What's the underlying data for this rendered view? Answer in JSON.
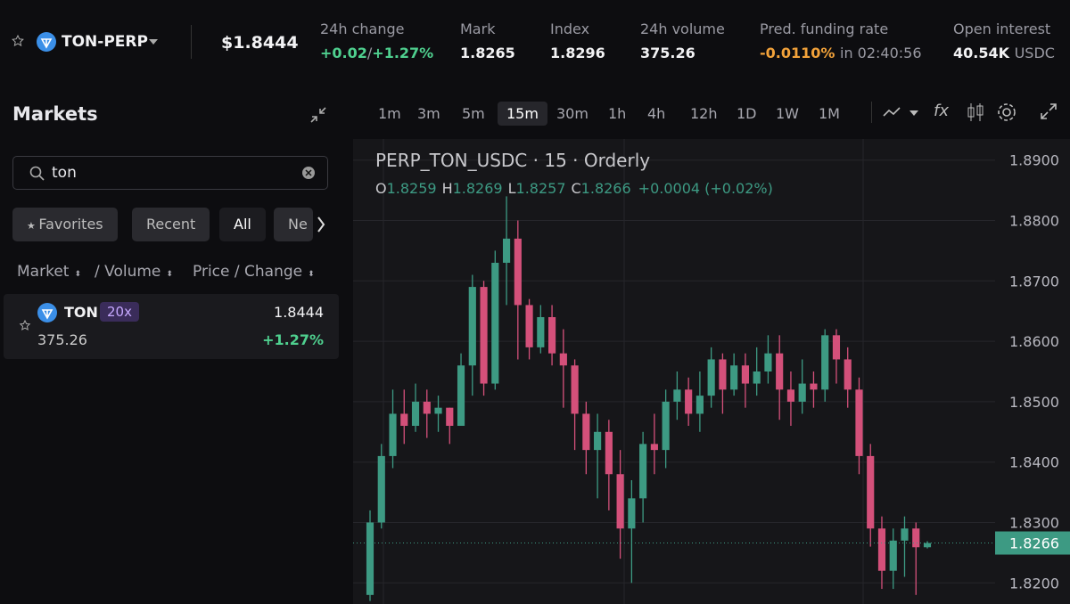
{
  "header": {
    "symbol": "TON-PERP",
    "price": "$1.8444",
    "stats": [
      {
        "label": "24h change",
        "value": "+0.02",
        "sep": "/",
        "extra": "+1.27%"
      },
      {
        "label": "Mark",
        "value": "1.8265"
      },
      {
        "label": "Index",
        "value": "1.8296"
      },
      {
        "label": "24h volume",
        "value": "375.26"
      },
      {
        "label": "Pred. funding rate",
        "value": "-0.0110%",
        "extra": "in 02:40:56"
      },
      {
        "label": "Open interest",
        "value": "40.54K",
        "extra": "USDC"
      }
    ]
  },
  "markets": {
    "title": "Markets",
    "search": "ton",
    "tabs": [
      "Favorites",
      "Recent",
      "All",
      "Ne"
    ],
    "columns": [
      "Market",
      "/ Volume",
      "Price / Change"
    ],
    "rows": [
      {
        "symbol": "TON",
        "leverage": "20x",
        "price": "1.8444",
        "volume": "375.26",
        "change": "+1.27%"
      }
    ]
  },
  "toolbar": {
    "intervals": [
      "1m",
      "3m",
      "5m",
      "15m",
      "30m",
      "1h",
      "4h",
      "12h",
      "1D",
      "1W",
      "1M"
    ],
    "active": "15m",
    "fx": "fx"
  },
  "chart_data": {
    "type": "candlestick",
    "title": "PERP_TON_USDC · 15 · Orderly",
    "legend": {
      "O": "1.8259",
      "H": "1.8269",
      "L": "1.8257",
      "C": "1.8266",
      "change": "+0.0004 (+0.02%)"
    },
    "up_color": "#3d9a83",
    "down_color": "#d4507a",
    "ylim": [
      1.8165,
      1.8935
    ],
    "yticks": [
      {
        "value": 1.82,
        "label": "1.8200"
      },
      {
        "value": 1.83,
        "label": "1.8300"
      },
      {
        "value": 1.84,
        "label": "1.8400"
      },
      {
        "value": 1.85,
        "label": "1.8500"
      },
      {
        "value": 1.86,
        "label": "1.8600"
      },
      {
        "value": 1.87,
        "label": "1.8700"
      },
      {
        "value": 1.88,
        "label": "1.8800"
      },
      {
        "value": 1.89,
        "label": "1.8900"
      }
    ],
    "last": {
      "value": 1.8266,
      "label": "1.8266"
    },
    "candles": [
      {
        "o": 1.818,
        "h": 1.832,
        "l": 1.817,
        "c": 1.83
      },
      {
        "o": 1.83,
        "h": 1.843,
        "l": 1.829,
        "c": 1.841
      },
      {
        "o": 1.841,
        "h": 1.852,
        "l": 1.839,
        "c": 1.848
      },
      {
        "o": 1.848,
        "h": 1.852,
        "l": 1.843,
        "c": 1.846
      },
      {
        "o": 1.846,
        "h": 1.853,
        "l": 1.845,
        "c": 1.85
      },
      {
        "o": 1.85,
        "h": 1.852,
        "l": 1.844,
        "c": 1.848
      },
      {
        "o": 1.848,
        "h": 1.851,
        "l": 1.845,
        "c": 1.849
      },
      {
        "o": 1.849,
        "h": 1.849,
        "l": 1.843,
        "c": 1.846
      },
      {
        "o": 1.846,
        "h": 1.858,
        "l": 1.846,
        "c": 1.856
      },
      {
        "o": 1.856,
        "h": 1.871,
        "l": 1.851,
        "c": 1.869
      },
      {
        "o": 1.869,
        "h": 1.87,
        "l": 1.851,
        "c": 1.853
      },
      {
        "o": 1.853,
        "h": 1.875,
        "l": 1.852,
        "c": 1.873
      },
      {
        "o": 1.873,
        "h": 1.884,
        "l": 1.866,
        "c": 1.877
      },
      {
        "o": 1.877,
        "h": 1.88,
        "l": 1.857,
        "c": 1.866
      },
      {
        "o": 1.866,
        "h": 1.867,
        "l": 1.857,
        "c": 1.859
      },
      {
        "o": 1.859,
        "h": 1.866,
        "l": 1.858,
        "c": 1.864
      },
      {
        "o": 1.864,
        "h": 1.866,
        "l": 1.856,
        "c": 1.858
      },
      {
        "o": 1.858,
        "h": 1.862,
        "l": 1.849,
        "c": 1.856
      },
      {
        "o": 1.856,
        "h": 1.857,
        "l": 1.842,
        "c": 1.848
      },
      {
        "o": 1.848,
        "h": 1.85,
        "l": 1.838,
        "c": 1.842
      },
      {
        "o": 1.842,
        "h": 1.848,
        "l": 1.834,
        "c": 1.845
      },
      {
        "o": 1.845,
        "h": 1.847,
        "l": 1.832,
        "c": 1.838
      },
      {
        "o": 1.838,
        "h": 1.842,
        "l": 1.824,
        "c": 1.829
      },
      {
        "o": 1.829,
        "h": 1.837,
        "l": 1.82,
        "c": 1.834
      },
      {
        "o": 1.834,
        "h": 1.845,
        "l": 1.83,
        "c": 1.843
      },
      {
        "o": 1.843,
        "h": 1.848,
        "l": 1.838,
        "c": 1.842
      },
      {
        "o": 1.842,
        "h": 1.852,
        "l": 1.839,
        "c": 1.85
      },
      {
        "o": 1.85,
        "h": 1.855,
        "l": 1.847,
        "c": 1.852
      },
      {
        "o": 1.852,
        "h": 1.854,
        "l": 1.846,
        "c": 1.848
      },
      {
        "o": 1.848,
        "h": 1.855,
        "l": 1.845,
        "c": 1.851
      },
      {
        "o": 1.851,
        "h": 1.859,
        "l": 1.849,
        "c": 1.857
      },
      {
        "o": 1.857,
        "h": 1.858,
        "l": 1.848,
        "c": 1.852
      },
      {
        "o": 1.852,
        "h": 1.858,
        "l": 1.851,
        "c": 1.856
      },
      {
        "o": 1.856,
        "h": 1.858,
        "l": 1.849,
        "c": 1.853
      },
      {
        "o": 1.853,
        "h": 1.859,
        "l": 1.851,
        "c": 1.855
      },
      {
        "o": 1.855,
        "h": 1.861,
        "l": 1.853,
        "c": 1.858
      },
      {
        "o": 1.858,
        "h": 1.861,
        "l": 1.847,
        "c": 1.852
      },
      {
        "o": 1.852,
        "h": 1.855,
        "l": 1.846,
        "c": 1.85
      },
      {
        "o": 1.85,
        "h": 1.857,
        "l": 1.848,
        "c": 1.853
      },
      {
        "o": 1.853,
        "h": 1.855,
        "l": 1.849,
        "c": 1.852
      },
      {
        "o": 1.852,
        "h": 1.862,
        "l": 1.85,
        "c": 1.861
      },
      {
        "o": 1.861,
        "h": 1.862,
        "l": 1.853,
        "c": 1.857
      },
      {
        "o": 1.857,
        "h": 1.859,
        "l": 1.849,
        "c": 1.852
      },
      {
        "o": 1.852,
        "h": 1.854,
        "l": 1.838,
        "c": 1.841
      },
      {
        "o": 1.841,
        "h": 1.843,
        "l": 1.826,
        "c": 1.829
      },
      {
        "o": 1.829,
        "h": 1.831,
        "l": 1.819,
        "c": 1.822
      },
      {
        "o": 1.822,
        "h": 1.829,
        "l": 1.819,
        "c": 1.827
      },
      {
        "o": 1.827,
        "h": 1.831,
        "l": 1.821,
        "c": 1.829
      },
      {
        "o": 1.829,
        "h": 1.83,
        "l": 1.818,
        "c": 1.8259
      },
      {
        "o": 1.8259,
        "h": 1.8269,
        "l": 1.8257,
        "c": 1.8266
      }
    ]
  }
}
